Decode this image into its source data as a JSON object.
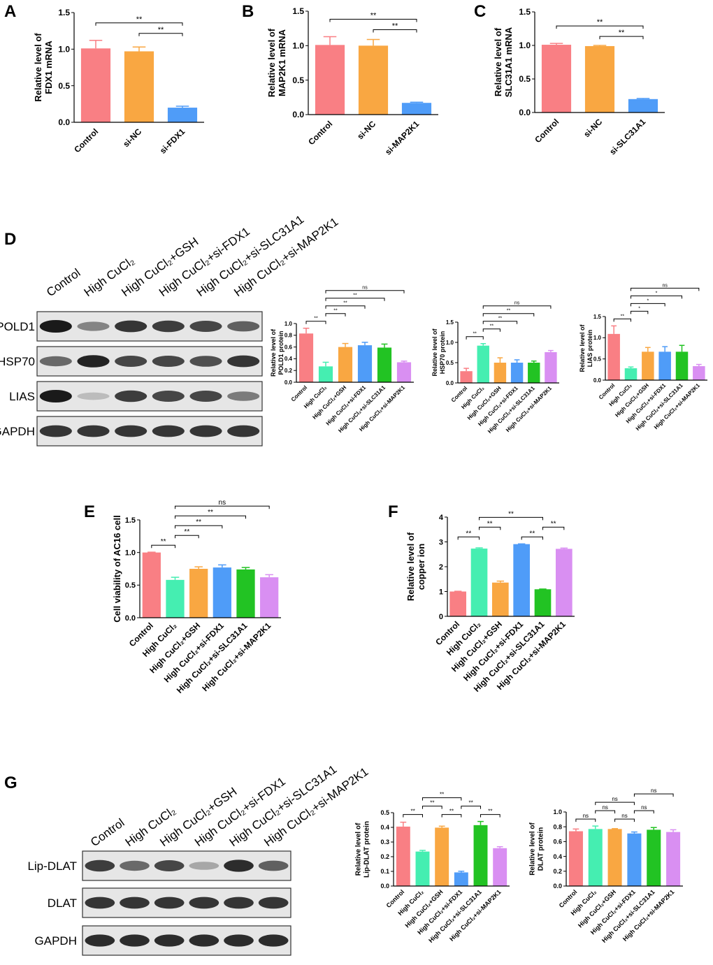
{
  "colors": {
    "red": "#f97f84",
    "orange": "#f9a742",
    "blue": "#4f9cf8",
    "teal": "#45eeb1",
    "green": "#22c323",
    "purple": "#d98ff2"
  },
  "panels": {
    "A": "A",
    "B": "B",
    "C": "C",
    "D": "D",
    "E": "E",
    "F": "F",
    "G": "G"
  },
  "blots": {
    "D": {
      "lanes": [
        "Control",
        "High CuCl₂",
        "High CuCl₂+GSH",
        "High CuCl₂+si-FDX1",
        "High CuCl₂+si-SLC31A1",
        "High CuCl₂+si-MAP2K1"
      ],
      "rows": [
        {
          "label": "POLD1",
          "intensity": [
            1.0,
            0.4,
            0.85,
            0.8,
            0.75,
            0.6
          ]
        },
        {
          "label": "HSP70",
          "intensity": [
            0.55,
            0.95,
            0.75,
            0.75,
            0.7,
            0.85
          ]
        },
        {
          "label": "LIAS",
          "intensity": [
            1.0,
            0.08,
            0.8,
            0.75,
            0.75,
            0.45
          ]
        },
        {
          "label": "GAPDH",
          "intensity": [
            0.85,
            0.85,
            0.85,
            0.85,
            0.85,
            0.85
          ]
        }
      ]
    },
    "G": {
      "lanes": [
        "Control",
        "High CuCl₂",
        "High CuCl₂+GSH",
        "High CuCl₂+si-FDX1",
        "High CuCl₂+si-SLC31A1",
        "High CuCl₂+si-MAP2K1"
      ],
      "rows": [
        {
          "label": "Lip-DLAT",
          "intensity": [
            0.8,
            0.55,
            0.75,
            0.2,
            0.9,
            0.6
          ]
        },
        {
          "label": "DLAT",
          "intensity": [
            0.85,
            0.85,
            0.85,
            0.85,
            0.85,
            0.85
          ]
        },
        {
          "label": "GAPDH",
          "intensity": [
            0.9,
            0.9,
            0.9,
            0.9,
            0.9,
            0.9
          ]
        }
      ]
    }
  },
  "chart_data": [
    {
      "panel": "A",
      "type": "bar",
      "categories": [
        "Control",
        "si-NC",
        "si-FDX1"
      ],
      "values": [
        1.01,
        0.97,
        0.2
      ],
      "errors": [
        0.11,
        0.06,
        0.02
      ],
      "colors": [
        "red",
        "orange",
        "blue"
      ],
      "ylabel": [
        "Relative level of",
        "FDX1 mRNA"
      ],
      "ylim": [
        0,
        1.5
      ],
      "yticks": [
        0.0,
        0.5,
        1.0,
        1.5
      ],
      "yticklabels": [
        "0.0",
        "0.5",
        "1.0",
        "1.5"
      ],
      "brackets": [
        {
          "from": 0,
          "to": 2,
          "label": "**"
        },
        {
          "from": 1,
          "to": 2,
          "label": "**"
        }
      ]
    },
    {
      "panel": "B",
      "type": "bar",
      "categories": [
        "Control",
        "si-NC",
        "si-MAP2K1"
      ],
      "values": [
        1.01,
        1.0,
        0.17
      ],
      "errors": [
        0.12,
        0.09,
        0.01
      ],
      "colors": [
        "red",
        "orange",
        "blue"
      ],
      "ylabel": [
        "Relative level of",
        "MAP2K1 mRNA"
      ],
      "ylim": [
        0,
        1.5
      ],
      "yticks": [
        0.0,
        0.5,
        1.0,
        1.5
      ],
      "yticklabels": [
        "0.0",
        "0.5",
        "1.0",
        "1.5"
      ],
      "brackets": [
        {
          "from": 0,
          "to": 2,
          "label": "**"
        },
        {
          "from": 1,
          "to": 2,
          "label": "**"
        }
      ]
    },
    {
      "panel": "C",
      "type": "bar",
      "categories": [
        "Control",
        "si-NC",
        "si-SLC31A1"
      ],
      "values": [
        1.01,
        0.99,
        0.2
      ],
      "errors": [
        0.02,
        0.01,
        0.01
      ],
      "colors": [
        "red",
        "orange",
        "blue"
      ],
      "ylabel": [
        "Relative level of",
        "SLC31A1 mRNA"
      ],
      "ylim": [
        0,
        1.5
      ],
      "yticks": [
        0.0,
        0.5,
        1.0,
        1.5
      ],
      "yticklabels": [
        "0.0",
        "0.5",
        "1.0",
        "1.5"
      ],
      "brackets": [
        {
          "from": 0,
          "to": 2,
          "label": "**"
        },
        {
          "from": 1,
          "to": 2,
          "label": "**"
        }
      ]
    },
    {
      "panel": "D1",
      "type": "bar",
      "categories": [
        "Control",
        "High CuCl₂",
        "High CuCl₂+GSH",
        "High CuCl₂+si-FDX1",
        "High CuCl₂+si-SLC31A1",
        "High CuCl₂+si-MAP2K1"
      ],
      "values": [
        0.83,
        0.27,
        0.6,
        0.63,
        0.59,
        0.34
      ],
      "errors": [
        0.09,
        0.07,
        0.06,
        0.05,
        0.06,
        0.02
      ],
      "colors": [
        "red",
        "teal",
        "orange",
        "blue",
        "green",
        "purple"
      ],
      "ylabel": [
        "Relative level of",
        "POLD1 protein"
      ],
      "ylim": [
        0,
        1.0
      ],
      "yticks": [
        0.0,
        0.2,
        0.4,
        0.6,
        0.8,
        1.0
      ],
      "yticklabels": [
        "0.0",
        "0.2",
        "0.4",
        "0.6",
        "0.8",
        "1.0"
      ],
      "brackets": [
        {
          "from": 0,
          "to": 1,
          "label": "**"
        },
        {
          "from": 1,
          "to": 2,
          "label": "**"
        },
        {
          "from": 1,
          "to": 3,
          "label": "**"
        },
        {
          "from": 1,
          "to": 4,
          "label": "**"
        },
        {
          "from": 1,
          "to": 5,
          "label": "ns"
        }
      ]
    },
    {
      "panel": "D2",
      "type": "bar",
      "categories": [
        "Control",
        "High CuCl₂",
        "High CuCl₂+GSH",
        "High CuCl₂+si-FDX1",
        "High CuCl₂+si-SLC31A1",
        "High CuCl₂+si-MAP2K1"
      ],
      "values": [
        0.29,
        0.92,
        0.5,
        0.5,
        0.5,
        0.76
      ],
      "errors": [
        0.07,
        0.05,
        0.12,
        0.07,
        0.04,
        0.04
      ],
      "colors": [
        "red",
        "teal",
        "orange",
        "blue",
        "green",
        "purple"
      ],
      "ylabel": [
        "Relative level of",
        "HSP70 protein"
      ],
      "ylim": [
        0,
        1.5
      ],
      "yticks": [
        0.0,
        0.5,
        1.0,
        1.5
      ],
      "yticklabels": [
        "0.0",
        "0.5",
        "1.0",
        "1.5"
      ],
      "brackets": [
        {
          "from": 0,
          "to": 1,
          "label": "**"
        },
        {
          "from": 1,
          "to": 2,
          "label": "**"
        },
        {
          "from": 1,
          "to": 3,
          "label": "**"
        },
        {
          "from": 1,
          "to": 4,
          "label": "**"
        },
        {
          "from": 1,
          "to": 5,
          "label": "ns"
        }
      ]
    },
    {
      "panel": "D3",
      "type": "bar",
      "categories": [
        "Control",
        "High CuCl₂",
        "High CuCl₂+GSH",
        "High CuCl₂+si-FDX1",
        "High CuCl₂+si-SLC31A1",
        "High CuCl₂+si-MAP2K1"
      ],
      "values": [
        1.09,
        0.28,
        0.67,
        0.67,
        0.67,
        0.33
      ],
      "errors": [
        0.19,
        0.03,
        0.1,
        0.12,
        0.15,
        0.04
      ],
      "colors": [
        "red",
        "teal",
        "orange",
        "blue",
        "green",
        "purple"
      ],
      "ylabel": [
        "Relative level of",
        "LIAS protein"
      ],
      "ylim": [
        0,
        1.5
      ],
      "yticks": [
        0.0,
        0.5,
        1.0,
        1.5
      ],
      "yticklabels": [
        "0.0",
        "0.5",
        "1.0",
        "1.5"
      ],
      "brackets": [
        {
          "from": 0,
          "to": 1,
          "label": "**"
        },
        {
          "from": 1,
          "to": 2,
          "label": "*"
        },
        {
          "from": 1,
          "to": 3,
          "label": "*"
        },
        {
          "from": 1,
          "to": 4,
          "label": "*"
        },
        {
          "from": 1,
          "to": 5,
          "label": "ns"
        }
      ]
    },
    {
      "panel": "E",
      "type": "bar",
      "categories": [
        "Control",
        "High CuCl₂",
        "High CuCl₂+GSH",
        "High CuCl₂+si-FDX1",
        "High CuCl₂+si-SLC31A1",
        "High CuCl₂+si-MAP2K1"
      ],
      "values": [
        1.0,
        0.58,
        0.75,
        0.77,
        0.74,
        0.62
      ],
      "errors": [
        0.005,
        0.04,
        0.03,
        0.04,
        0.03,
        0.04
      ],
      "colors": [
        "red",
        "teal",
        "orange",
        "blue",
        "green",
        "purple"
      ],
      "ylabel": [
        "Cell viability of AC16 cell"
      ],
      "ylim": [
        0,
        1.5
      ],
      "yticks": [
        0.0,
        0.5,
        1.0,
        1.5
      ],
      "yticklabels": [
        "0.0",
        "0.5",
        "1.0",
        "1.5"
      ],
      "brackets": [
        {
          "from": 0,
          "to": 1,
          "label": "**"
        },
        {
          "from": 1,
          "to": 2,
          "label": "**"
        },
        {
          "from": 1,
          "to": 3,
          "label": "**"
        },
        {
          "from": 1,
          "to": 4,
          "label": "**"
        },
        {
          "from": 1,
          "to": 5,
          "label": "ns"
        }
      ]
    },
    {
      "panel": "F",
      "type": "bar",
      "categories": [
        "Control",
        "High CuCl₂",
        "High CuCl₂+GSH",
        "High CuCl₂+si-FDX1",
        "High CuCl₂+si-SLC31A1",
        "High CuCl₂+si-MAP2K1"
      ],
      "values": [
        1.0,
        2.73,
        1.36,
        2.91,
        1.09,
        2.72
      ],
      "errors": [
        0.01,
        0.03,
        0.06,
        0.01,
        0.01,
        0.03
      ],
      "colors": [
        "red",
        "teal",
        "orange",
        "blue",
        "green",
        "purple"
      ],
      "ylabel": [
        "Relative level of",
        "copper ion"
      ],
      "ylim": [
        0,
        4
      ],
      "yticks": [
        0,
        1,
        2,
        3,
        4
      ],
      "yticklabels": [
        "0",
        "1",
        "2",
        "3",
        "4"
      ],
      "brackets": [
        {
          "from": 0,
          "to": 1,
          "label": "**"
        },
        {
          "from": 1,
          "to": 2,
          "label": "**"
        },
        {
          "from": 3,
          "to": 4,
          "label": "**"
        },
        {
          "from": 4,
          "to": 5,
          "label": "**"
        },
        {
          "from": 1,
          "to": 4,
          "label": "**"
        }
      ]
    },
    {
      "panel": "G1",
      "type": "bar",
      "categories": [
        "Control",
        "High CuCl₂",
        "High CuCl₂+GSH",
        "High CuCl₂+si-FDX1",
        "High CuCl₂+si-SLC31A1",
        "High CuCl₂+si-MAP2K1"
      ],
      "values": [
        0.405,
        0.235,
        0.398,
        0.093,
        0.415,
        0.258
      ],
      "errors": [
        0.03,
        0.008,
        0.01,
        0.008,
        0.025,
        0.01
      ],
      "colors": [
        "red",
        "teal",
        "orange",
        "blue",
        "green",
        "purple"
      ],
      "ylabel": [
        "Relative level of",
        "Lip-DLAT protein"
      ],
      "ylim": [
        0,
        0.5
      ],
      "yticks": [
        0.0,
        0.1,
        0.2,
        0.3,
        0.4,
        0.5
      ],
      "yticklabels": [
        "0.0",
        "0.1",
        "0.2",
        "0.3",
        "0.4",
        "0.5"
      ],
      "brackets": [
        {
          "from": 0,
          "to": 1,
          "label": "**"
        },
        {
          "from": 1,
          "to": 2,
          "label": "**"
        },
        {
          "from": 2,
          "to": 3,
          "label": "**"
        },
        {
          "from": 3,
          "to": 4,
          "label": "**"
        },
        {
          "from": 1,
          "to": 3,
          "label": "**"
        },
        {
          "from": 4,
          "to": 5,
          "label": "**"
        }
      ]
    },
    {
      "panel": "G2",
      "type": "bar",
      "categories": [
        "Control",
        "High CuCl₂",
        "High CuCl₂+GSH",
        "High CuCl₂+si-FDX1",
        "High CuCl₂+si-SLC31A1",
        "High CuCl₂+si-MAP2K1"
      ],
      "values": [
        0.74,
        0.77,
        0.77,
        0.71,
        0.76,
        0.73
      ],
      "errors": [
        0.03,
        0.04,
        0.005,
        0.02,
        0.03,
        0.03
      ],
      "colors": [
        "red",
        "teal",
        "orange",
        "blue",
        "green",
        "purple"
      ],
      "ylabel": [
        "Relative level of",
        "DLAT protein"
      ],
      "ylim": [
        0,
        1.0
      ],
      "yticks": [
        0.0,
        0.2,
        0.4,
        0.6,
        0.8,
        1.0
      ],
      "yticklabels": [
        "0.0",
        "0.2",
        "0.4",
        "0.6",
        "0.8",
        "1.0"
      ],
      "brackets": [
        {
          "from": 0,
          "to": 1,
          "label": "ns"
        },
        {
          "from": 1,
          "to": 2,
          "label": "ns"
        },
        {
          "from": 2,
          "to": 3,
          "label": "ns"
        },
        {
          "from": 3,
          "to": 4,
          "label": "ns"
        },
        {
          "from": 1,
          "to": 3,
          "label": "ns"
        },
        {
          "from": 3,
          "to": 5,
          "label": "ns"
        }
      ]
    }
  ]
}
